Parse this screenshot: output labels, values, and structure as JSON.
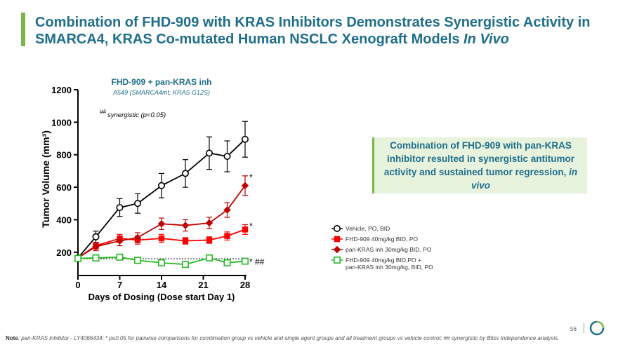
{
  "slide": {
    "title_line1": "Combination of FHD-909 with KRAS Inhibitors Demonstrates Synergistic Activity in",
    "title_line2": "SMARCA4, KRAS Co-mutated Human NSCLC Xenograft Models ",
    "title_italic": "In Vivo",
    "callout_text": "Combination of FHD-909 with pan-KRAS inhibitor resulted in synergistic antitumor activity and sustained tumor regression,",
    "callout_italic": "in vivo",
    "note_label": "Note",
    "note_text": ": pan-KRAS inhibitor - LY4066434; * p≤0.05 for pairwise comparisons for combination group vs vehicle and single agent groups and all treatment groups vs vehicle control; ## synergistic by Bliss Independence analysis.",
    "page_number": "56"
  },
  "colors": {
    "title": "#1f6e8c",
    "accent_green": "#7ab648",
    "vehicle": "#000000",
    "fhd": "#ff0000",
    "pan_kras": "#c00000",
    "combo": "#22bb22"
  },
  "chart_data": {
    "type": "line",
    "title": "FHD-909 + pan-KRAS inh",
    "subtitle": "A549 (SMARCA4mt, KRAS G12S)",
    "annotation": "synergistic (p<0.05)",
    "annotation_prefix": "##",
    "xlabel": "Days of Dosing (Dose start Day 1)",
    "ylabel": "Tumor Volume (mm³)",
    "xlim": [
      0,
      28
    ],
    "ylim": [
      100,
      1200
    ],
    "xticks": [
      0,
      7,
      14,
      21,
      28
    ],
    "yticks": [
      200,
      400,
      600,
      800,
      1000,
      1200
    ],
    "legend_position": "right",
    "series": [
      {
        "name": "Vehicle, PO, BID",
        "marker": "open-circle",
        "x": [
          0,
          3,
          7,
          10,
          14,
          18,
          22,
          25,
          28
        ],
        "y": [
          165,
          295,
          475,
          500,
          610,
          685,
          810,
          790,
          895
        ],
        "err": [
          10,
          35,
          55,
          60,
          75,
          85,
          100,
          95,
          110
        ]
      },
      {
        "name": "FHD-909 40mg/kg BID, PO",
        "marker": "filled-square",
        "x": [
          0,
          3,
          7,
          10,
          14,
          18,
          22,
          25,
          28
        ],
        "y": [
          165,
          240,
          285,
          275,
          285,
          270,
          275,
          300,
          340
        ],
        "err": [
          10,
          20,
          25,
          25,
          25,
          20,
          20,
          25,
          30
        ]
      },
      {
        "name": "pan-KRAS inh 30mg/kg BID, PO",
        "marker": "filled-diamond",
        "x": [
          0,
          3,
          7,
          10,
          14,
          18,
          22,
          25,
          28
        ],
        "y": [
          165,
          235,
          270,
          290,
          375,
          365,
          380,
          460,
          610
        ],
        "err": [
          10,
          25,
          30,
          30,
          35,
          35,
          35,
          45,
          60
        ]
      },
      {
        "name": "FHD-909 40mg/kg BID,PO + pan-KRAS inh 30mg/kg, BID, PO",
        "legend_lines": [
          "FHD-909 40mg/kg BID,PO +",
          "pan-KRAS inh 30mg/kg, BID, PO"
        ],
        "marker": "open-square",
        "x": [
          0,
          3,
          7,
          10,
          14,
          18,
          22,
          25,
          28
        ],
        "y": [
          162,
          165,
          170,
          150,
          135,
          125,
          165,
          135,
          145
        ],
        "err": [
          5,
          8,
          8,
          8,
          8,
          8,
          8,
          8,
          8
        ]
      }
    ],
    "point_annotations": [
      {
        "series": 2,
        "text": "*"
      },
      {
        "series": 1,
        "text": "*"
      },
      {
        "series": 3,
        "text": "* ##"
      }
    ]
  }
}
